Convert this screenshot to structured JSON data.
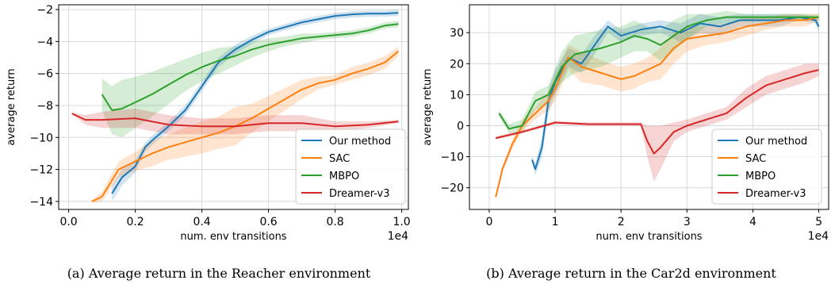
{
  "captions": {
    "a": "(a) Average return in the Reacher environment",
    "b": "(b) Average return in the Car2d environment"
  },
  "colors": {
    "Our method": "#1f77b4",
    "SAC": "#ff7f0e",
    "MBPO": "#2ca02c",
    "Dreamer-v3": "#d62728"
  },
  "chart_data": [
    {
      "type": "line",
      "xlabel": "num. env transitions",
      "ylabel": "average return",
      "x_multiplier": "1e4",
      "xlim": [
        -0.03,
        1.02
      ],
      "ylim": [
        -14.5,
        -1.7
      ],
      "xticks": [
        0.0,
        0.2,
        0.4,
        0.6,
        0.8,
        1.0
      ],
      "xtick_labels": [
        "0.0",
        "0.2",
        "0.4",
        "0.6",
        "0.8",
        "1.0"
      ],
      "yticks": [
        -14,
        -12,
        -10,
        -8,
        -6,
        -4,
        -2
      ],
      "ytick_labels": [
        "−14",
        "−12",
        "−10",
        "−8",
        "−6",
        "−4",
        "−2"
      ],
      "grid": true,
      "legend_position": "bottom-right",
      "series": [
        {
          "name": "Our method",
          "x": [
            0.13,
            0.16,
            0.2,
            0.23,
            0.25,
            0.3,
            0.35,
            0.4,
            0.45,
            0.5,
            0.55,
            0.6,
            0.65,
            0.7,
            0.75,
            0.8,
            0.85,
            0.9,
            0.95,
            0.99
          ],
          "y": [
            -13.5,
            -12.5,
            -11.8,
            -10.6,
            -10.2,
            -9.3,
            -8.3,
            -6.8,
            -5.3,
            -4.5,
            -3.9,
            -3.4,
            -3.1,
            -2.8,
            -2.6,
            -2.4,
            -2.3,
            -2.25,
            -2.25,
            -2.2
          ],
          "band": [
            0.5,
            0.5,
            0.4,
            0.3,
            0.3,
            0.3,
            0.3,
            0.3,
            0.3,
            0.3,
            0.25,
            0.2,
            0.2,
            0.2,
            0.2,
            0.2,
            0.2,
            0.2,
            0.2,
            0.2
          ]
        },
        {
          "name": "SAC",
          "x": [
            0.07,
            0.1,
            0.15,
            0.2,
            0.25,
            0.3,
            0.35,
            0.4,
            0.45,
            0.5,
            0.55,
            0.6,
            0.65,
            0.7,
            0.75,
            0.8,
            0.85,
            0.9,
            0.95,
            0.99
          ],
          "y": [
            -14,
            -13.7,
            -12,
            -11.5,
            -11,
            -10.6,
            -10.3,
            -10,
            -9.7,
            -9.3,
            -8.8,
            -8.2,
            -7.6,
            -7,
            -6.6,
            -6.4,
            -6,
            -5.7,
            -5.3,
            -4.6
          ],
          "band": [
            0.1,
            0.3,
            0.5,
            0.6,
            0.8,
            0.8,
            0.9,
            1.0,
            1.0,
            1.2,
            0.9,
            0.8,
            0.7,
            0.6,
            0.4,
            0.3,
            0.4,
            0.4,
            0.4,
            0.3
          ]
        },
        {
          "name": "MBPO",
          "x": [
            0.1,
            0.13,
            0.16,
            0.2,
            0.25,
            0.3,
            0.35,
            0.4,
            0.45,
            0.5,
            0.55,
            0.6,
            0.65,
            0.7,
            0.75,
            0.8,
            0.85,
            0.9,
            0.95,
            0.99
          ],
          "y": [
            -7.3,
            -8.3,
            -8.2,
            -7.8,
            -7.3,
            -6.7,
            -6.1,
            -5.6,
            -5.2,
            -4.9,
            -4.5,
            -4.2,
            -4.0,
            -3.8,
            -3.7,
            -3.6,
            -3.5,
            -3.3,
            -3.0,
            -2.9
          ],
          "band": [
            1.0,
            1.5,
            1.8,
            1.6,
            1.4,
            1.2,
            1.0,
            0.9,
            0.8,
            0.6,
            0.5,
            0.4,
            0.3,
            0.3,
            0.2,
            0.2,
            0.2,
            0.2,
            0.2,
            0.2
          ]
        },
        {
          "name": "Dreamer-v3",
          "x": [
            0.01,
            0.05,
            0.1,
            0.2,
            0.3,
            0.4,
            0.5,
            0.6,
            0.7,
            0.8,
            0.9,
            0.99
          ],
          "y": [
            -8.5,
            -8.9,
            -8.9,
            -8.8,
            -9.2,
            -9.3,
            -9.3,
            -9.1,
            -9.1,
            -9.3,
            -9.2,
            -9.0
          ],
          "band": [
            0.05,
            0.3,
            0.5,
            0.6,
            0.6,
            0.5,
            0.5,
            0.5,
            0.5,
            0.3,
            0.2,
            0.1
          ]
        }
      ]
    },
    {
      "type": "line",
      "xlabel": "num. env transitions",
      "ylabel": "average return",
      "x_multiplier": "1e4",
      "xlim": [
        -0.3,
        5.15
      ],
      "ylim": [
        -27,
        39
      ],
      "xticks": [
        0,
        1,
        2,
        3,
        4,
        5
      ],
      "xtick_labels": [
        "0",
        "1",
        "2",
        "3",
        "4",
        "5"
      ],
      "yticks": [
        -20,
        -10,
        0,
        10,
        20,
        30
      ],
      "ytick_labels": [
        "−20",
        "−10",
        "0",
        "10",
        "20",
        "30"
      ],
      "grid": true,
      "legend_position": "bottom-right",
      "series": [
        {
          "name": "Our method",
          "x": [
            0.65,
            0.7,
            0.8,
            0.9,
            1.0,
            1.2,
            1.4,
            1.6,
            1.8,
            2.0,
            2.3,
            2.6,
            2.9,
            3.2,
            3.5,
            3.8,
            4.1,
            4.4,
            4.7,
            4.95,
            5.0
          ],
          "y": [
            -11,
            -14,
            -7,
            8,
            14,
            22,
            20,
            26,
            32,
            29,
            31,
            32,
            30,
            33,
            32,
            34,
            34,
            34,
            35,
            34,
            32
          ],
          "band": [
            1,
            2,
            3,
            4,
            4,
            3,
            3,
            3,
            2,
            2,
            2,
            2,
            3,
            3,
            3,
            2,
            2,
            2,
            1,
            1,
            2
          ]
        },
        {
          "name": "SAC",
          "x": [
            0.1,
            0.2,
            0.35,
            0.5,
            0.7,
            0.9,
            1.0,
            1.2,
            1.4,
            1.7,
            2.0,
            2.2,
            2.4,
            2.6,
            2.8,
            3.0,
            3.3,
            3.6,
            3.9,
            4.2,
            4.5,
            4.8,
            5.0
          ],
          "y": [
            -23,
            -14,
            -6,
            0,
            4,
            8,
            12,
            22,
            19,
            17,
            15,
            16,
            18,
            20,
            25,
            28,
            29,
            30,
            32,
            33,
            34,
            34,
            35
          ],
          "band": [
            0.5,
            1,
            1.5,
            2,
            2,
            3,
            4,
            4,
            5,
            4,
            4,
            4,
            4,
            5,
            5,
            4,
            3,
            3,
            3,
            2,
            2,
            2,
            1
          ]
        },
        {
          "name": "MBPO",
          "x": [
            0.15,
            0.3,
            0.5,
            0.7,
            0.9,
            1.1,
            1.3,
            1.5,
            1.7,
            2.0,
            2.2,
            2.4,
            2.6,
            2.8,
            3.0,
            3.3,
            3.6,
            3.9,
            4.2,
            4.5,
            4.8,
            5.0
          ],
          "y": [
            4,
            -1,
            0,
            8,
            10,
            19,
            23,
            24,
            25,
            27,
            29,
            28,
            26,
            29,
            32,
            34,
            35,
            35,
            35,
            35,
            35,
            35
          ],
          "band": [
            1,
            1.5,
            2,
            3,
            3,
            5,
            6,
            6,
            6,
            5,
            5,
            4,
            5,
            5,
            4,
            2,
            2,
            1,
            1,
            1,
            1,
            1
          ]
        },
        {
          "name": "Dreamer-v3",
          "x": [
            0.1,
            0.5,
            1.0,
            1.5,
            2.0,
            2.3,
            2.4,
            2.5,
            2.6,
            2.8,
            3.0,
            3.3,
            3.6,
            3.9,
            4.2,
            4.5,
            4.8,
            5.0
          ],
          "y": [
            -4,
            -2,
            1,
            0.5,
            0.5,
            0.5,
            -5,
            -9,
            -7,
            -2,
            0,
            2,
            4,
            9,
            13,
            15,
            17,
            18
          ],
          "band": [
            0.5,
            0.5,
            0.5,
            0.5,
            0.5,
            0.5,
            5,
            9,
            7,
            3,
            2,
            2,
            2,
            3,
            3,
            3,
            3,
            2
          ]
        }
      ]
    }
  ]
}
